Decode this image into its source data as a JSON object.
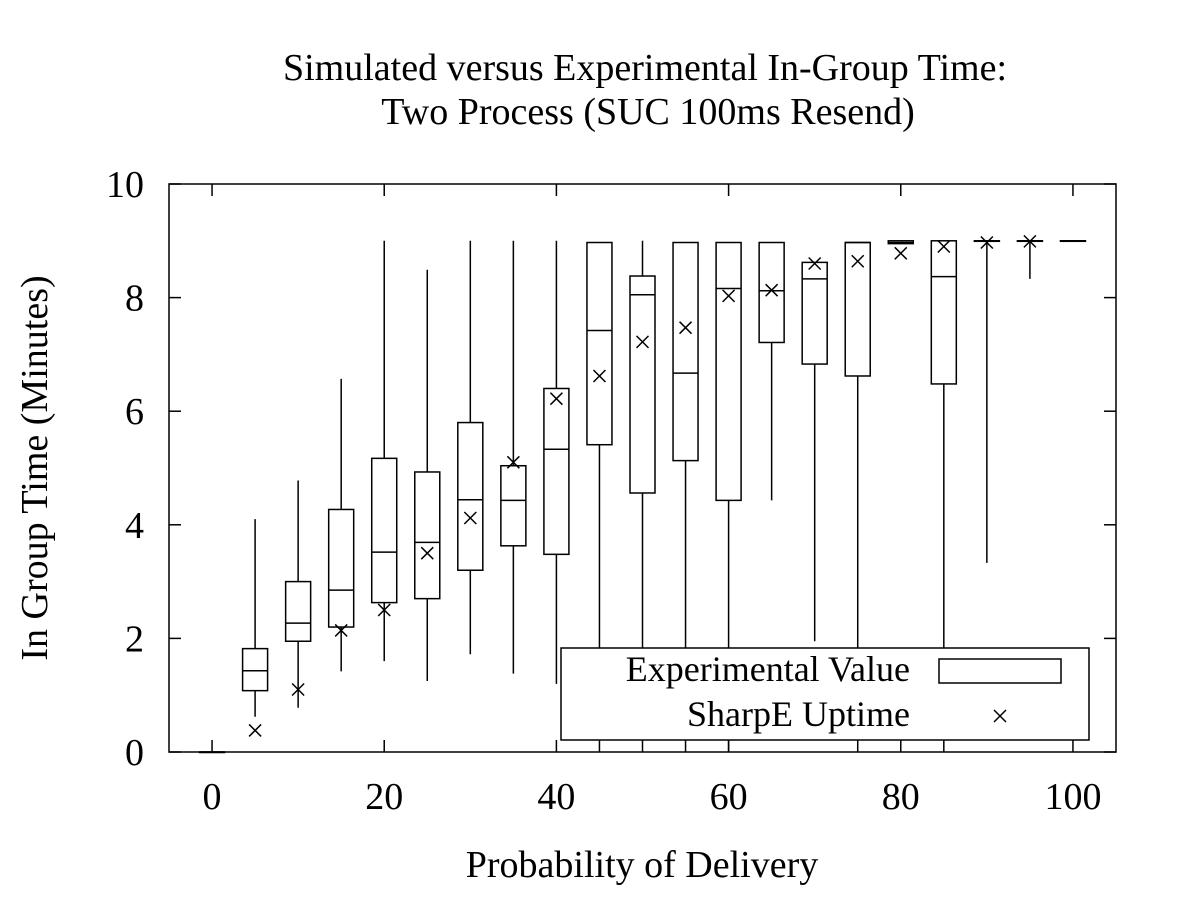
{
  "chart_data": {
    "type": "box",
    "title_line1": "Simulated versus Experimental In-Group Time:",
    "title_line2": "Two Process (SUC 100ms Resend)",
    "xlabel": "Probability of Delivery",
    "ylabel": "In Group Time (Minutes)",
    "xlim": [
      -5,
      105
    ],
    "ylim": [
      0,
      10
    ],
    "xticks": [
      0,
      20,
      40,
      60,
      80,
      100
    ],
    "xtick_labels": [
      "0",
      "20",
      "40",
      "60",
      "80",
      "100"
    ],
    "yticks": [
      0,
      2,
      4,
      6,
      8,
      10
    ],
    "ytick_labels": [
      "0",
      "2",
      "4",
      "6",
      "8",
      "10"
    ],
    "legend": {
      "position": "bottom-right",
      "experimental_label": "Experimental Value",
      "sharpe_label": "SharpE Uptime"
    },
    "series": [
      {
        "name": "Experimental Value",
        "kind": "boxplot",
        "boxes": [
          {
            "x": 0,
            "min": 0.0,
            "q1": 0.0,
            "median": 0.0,
            "q3": 0.0,
            "max": 0.0
          },
          {
            "x": 5,
            "min": 0.62,
            "q1": 1.08,
            "median": 1.43,
            "q3": 1.82,
            "max": 4.1
          },
          {
            "x": 10,
            "min": 0.78,
            "q1": 1.95,
            "median": 2.27,
            "q3": 3.0,
            "max": 4.78
          },
          {
            "x": 15,
            "min": 1.42,
            "q1": 2.2,
            "median": 2.85,
            "q3": 4.27,
            "max": 6.57
          },
          {
            "x": 20,
            "min": 1.6,
            "q1": 2.63,
            "median": 3.52,
            "q3": 5.17,
            "max": 9.0
          },
          {
            "x": 25,
            "min": 1.25,
            "q1": 2.7,
            "median": 3.69,
            "q3": 4.93,
            "max": 8.49
          },
          {
            "x": 30,
            "min": 1.72,
            "q1": 3.2,
            "median": 4.44,
            "q3": 5.8,
            "max": 9.0
          },
          {
            "x": 35,
            "min": 1.38,
            "q1": 3.63,
            "median": 4.43,
            "q3": 5.04,
            "max": 9.0
          },
          {
            "x": 40,
            "min": 1.2,
            "q1": 3.48,
            "median": 5.33,
            "q3": 6.4,
            "max": 9.0
          },
          {
            "x": 45,
            "min": 0.0,
            "q1": 5.41,
            "median": 7.42,
            "q3": 8.97,
            "max": 8.97
          },
          {
            "x": 50,
            "min": 0.0,
            "q1": 4.56,
            "median": 8.05,
            "q3": 8.38,
            "max": 9.0
          },
          {
            "x": 55,
            "min": 0.0,
            "q1": 5.13,
            "median": 6.67,
            "q3": 8.97,
            "max": 8.97
          },
          {
            "x": 60,
            "min": 0.0,
            "q1": 4.43,
            "median": 8.16,
            "q3": 8.97,
            "max": 8.97
          },
          {
            "x": 65,
            "min": 4.43,
            "q1": 7.21,
            "median": 8.12,
            "q3": 8.97,
            "max": 8.97
          },
          {
            "x": 70,
            "min": 1.95,
            "q1": 6.83,
            "median": 8.33,
            "q3": 8.62,
            "max": 8.62
          },
          {
            "x": 75,
            "min": 0.0,
            "q1": 6.62,
            "median": 8.97,
            "q3": 8.97,
            "max": 8.97
          },
          {
            "x": 80,
            "min": 8.95,
            "q1": 8.95,
            "median": 8.97,
            "q3": 9.0,
            "max": 9.0
          },
          {
            "x": 85,
            "min": 0.0,
            "q1": 6.48,
            "median": 8.37,
            "q3": 9.0,
            "max": 9.0
          },
          {
            "x": 90,
            "min": 3.33,
            "q1": 9.0,
            "median": 9.0,
            "q3": 9.0,
            "max": 9.0
          },
          {
            "x": 95,
            "min": 8.33,
            "q1": 9.0,
            "median": 9.0,
            "q3": 9.0,
            "max": 9.0
          },
          {
            "x": 100,
            "min": 9.0,
            "q1": 9.0,
            "median": 9.0,
            "q3": 9.0,
            "max": 9.0
          }
        ]
      },
      {
        "name": "SharpE Uptime",
        "kind": "scatter",
        "marker": "x",
        "points": [
          {
            "x": 5,
            "y": 0.38
          },
          {
            "x": 10,
            "y": 1.1
          },
          {
            "x": 15,
            "y": 2.14
          },
          {
            "x": 20,
            "y": 2.5
          },
          {
            "x": 25,
            "y": 3.5
          },
          {
            "x": 30,
            "y": 4.12
          },
          {
            "x": 35,
            "y": 5.1
          },
          {
            "x": 40,
            "y": 6.22
          },
          {
            "x": 45,
            "y": 6.62
          },
          {
            "x": 50,
            "y": 7.22
          },
          {
            "x": 55,
            "y": 7.47
          },
          {
            "x": 60,
            "y": 8.03
          },
          {
            "x": 65,
            "y": 8.13
          },
          {
            "x": 70,
            "y": 8.6
          },
          {
            "x": 75,
            "y": 8.64
          },
          {
            "x": 80,
            "y": 8.78
          },
          {
            "x": 85,
            "y": 8.9
          },
          {
            "x": 90,
            "y": 8.97
          },
          {
            "x": 95,
            "y": 8.99
          }
        ]
      }
    ]
  }
}
